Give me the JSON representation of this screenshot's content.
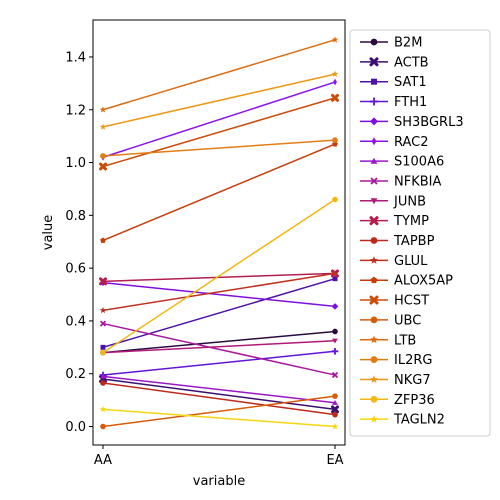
{
  "chart_data": {
    "type": "line",
    "xlabel": "variable",
    "ylabel": "value",
    "categories": [
      "AA",
      "EA"
    ],
    "ylim": [
      -0.07,
      1.54
    ],
    "yticks": [
      0.0,
      0.2,
      0.4,
      0.6,
      0.8,
      1.0,
      1.2,
      1.4
    ],
    "ytick_labels": [
      "0.0",
      "0.2",
      "0.4",
      "0.6",
      "0.8",
      "1.0",
      "1.2",
      "1.4"
    ],
    "grid": false,
    "legend_placement": "outside-right",
    "series": [
      {
        "name": "B2M",
        "values": [
          0.28,
          0.36
        ],
        "color": "#2b0b3f",
        "marker": "circle"
      },
      {
        "name": "ACTB",
        "values": [
          0.18,
          0.065
        ],
        "color": "#3b0f70",
        "marker": "x-filled"
      },
      {
        "name": "SAT1",
        "values": [
          0.3,
          0.56
        ],
        "color": "#4f11a8",
        "marker": "square"
      },
      {
        "name": "FTH1",
        "values": [
          0.195,
          0.285
        ],
        "color": "#6214d8",
        "marker": "plus"
      },
      {
        "name": "SH3BGRL3",
        "values": [
          0.545,
          0.455
        ],
        "color": "#7e0fe0",
        "marker": "diamond"
      },
      {
        "name": "RAC2",
        "values": [
          1.02,
          1.305
        ],
        "color": "#8c12e8",
        "marker": "thin-diamond"
      },
      {
        "name": "S100A6",
        "values": [
          0.19,
          0.09
        ],
        "color": "#9a17c9",
        "marker": "triangle-up"
      },
      {
        "name": "NFKBIA",
        "values": [
          0.39,
          0.195
        ],
        "color": "#a8189f",
        "marker": "x"
      },
      {
        "name": "JUNB",
        "values": [
          0.28,
          0.325
        ],
        "color": "#b01a78",
        "marker": "triangle-down"
      },
      {
        "name": "TYMP",
        "values": [
          0.55,
          0.58
        ],
        "color": "#b41d4e",
        "marker": "x-filled"
      },
      {
        "name": "TAPBP",
        "values": [
          0.165,
          0.045
        ],
        "color": "#bb2a1a",
        "marker": "circle"
      },
      {
        "name": "GLUL",
        "values": [
          0.44,
          0.58
        ],
        "color": "#c0301f",
        "marker": "star"
      },
      {
        "name": "ALOX5AP",
        "values": [
          0.705,
          1.07
        ],
        "color": "#c63d0a",
        "marker": "pentagon"
      },
      {
        "name": "HCST",
        "values": [
          0.985,
          1.245
        ],
        "color": "#cc4b08",
        "marker": "x-filled"
      },
      {
        "name": "UBC",
        "values": [
          0.0,
          0.115
        ],
        "color": "#d65b0a",
        "marker": "circle"
      },
      {
        "name": "LTB",
        "values": [
          1.2,
          1.465
        ],
        "color": "#dd6b10",
        "marker": "star"
      },
      {
        "name": "IL2RG",
        "values": [
          1.025,
          1.085
        ],
        "color": "#e27d16",
        "marker": "octagon"
      },
      {
        "name": "NKG7",
        "values": [
          1.135,
          1.335
        ],
        "color": "#ec9a16",
        "marker": "star"
      },
      {
        "name": "ZFP36",
        "values": [
          0.28,
          0.86
        ],
        "color": "#f0b810",
        "marker": "circle"
      },
      {
        "name": "TAGLN2",
        "values": [
          0.065,
          0.0
        ],
        "color": "#f7d60f",
        "marker": "star"
      }
    ]
  }
}
